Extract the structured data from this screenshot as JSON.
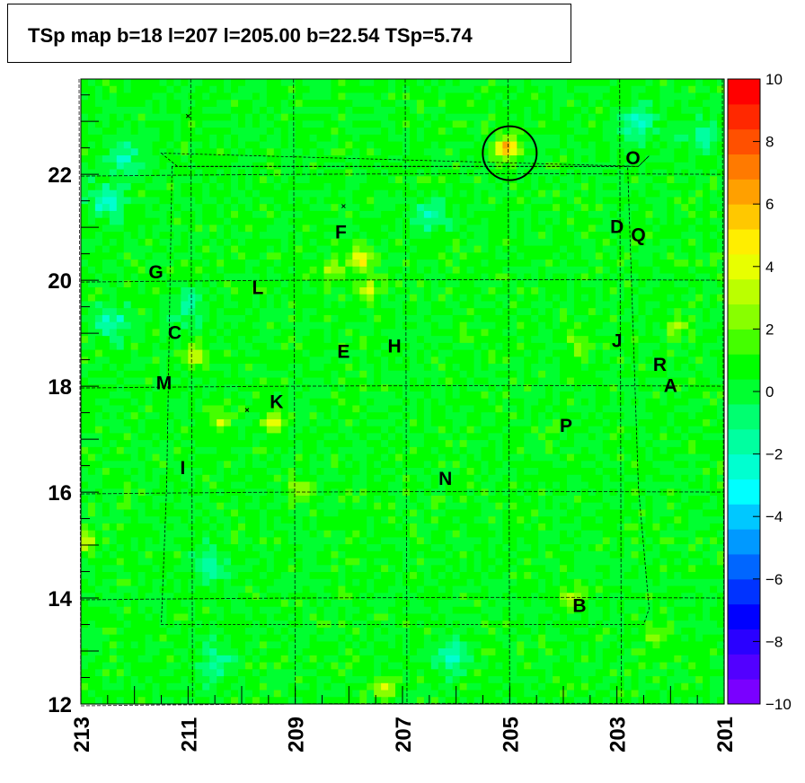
{
  "title": "TSp map b=18 l=207 l=205.00 b=22.54 TSp=5.74",
  "chart_data": {
    "type": "heatmap",
    "title": "TSp map b=18 l=207 l=205.00 b=22.54 TSp=5.74",
    "xlabel": "",
    "ylabel": "",
    "xlim": [
      213,
      201
    ],
    "ylim": [
      12,
      23.8
    ],
    "x_reversed": true,
    "x_ticks": [
      "213",
      "211",
      "209",
      "207",
      "205",
      "203",
      "201"
    ],
    "y_ticks": [
      "12",
      "14",
      "16",
      "18",
      "20",
      "22"
    ],
    "colorbar": {
      "min": -10,
      "max": 10,
      "ticks": [
        "10",
        "8",
        "6",
        "4",
        "2",
        "0",
        "−2",
        "−4",
        "−6",
        "−8",
        "−10"
      ],
      "colors": [
        "#7a00ff",
        "#5200ff",
        "#2a00ff",
        "#0000ff",
        "#0033ff",
        "#0066ff",
        "#0099ff",
        "#00c8ff",
        "#00ffff",
        "#00ffd0",
        "#00ffa0",
        "#00ff70",
        "#00ff30",
        "#00ff00",
        "#44ff00",
        "#88ff00",
        "#bbff00",
        "#e8ff00",
        "#ffee00",
        "#ffc800",
        "#ffa000",
        "#ff7a00",
        "#ff5000",
        "#ff2800",
        "#ff0000"
      ]
    },
    "field_background_value": 0.5,
    "highlight_circle": {
      "l": 205.0,
      "b": 22.4
    },
    "x_markers": [
      {
        "l": 211.0,
        "b": 23.1
      },
      {
        "l": 208.1,
        "b": 21.4
      },
      {
        "l": 209.9,
        "b": 17.55
      }
    ],
    "hotspots": [
      {
        "l": 205.05,
        "b": 22.5,
        "value": 6.0
      },
      {
        "l": 207.8,
        "b": 20.4,
        "value": 4.0
      },
      {
        "l": 207.6,
        "b": 19.8,
        "value": 3.0
      },
      {
        "l": 209.4,
        "b": 17.35,
        "value": 3.0
      },
      {
        "l": 210.4,
        "b": 17.3,
        "value": 2.5
      },
      {
        "l": 210.85,
        "b": 18.6,
        "value": 3.0
      },
      {
        "l": 212.9,
        "b": 15.1,
        "value": 3.0
      },
      {
        "l": 207.3,
        "b": 12.3,
        "value": 3.0
      },
      {
        "l": 208.9,
        "b": 16.0,
        "value": 2.5
      },
      {
        "l": 203.7,
        "b": 18.8,
        "value": 2.0
      },
      {
        "l": 202.3,
        "b": 13.3,
        "value": 2.0
      },
      {
        "l": 203.8,
        "b": 14.0,
        "value": 2.5
      },
      {
        "l": 201.9,
        "b": 19.1,
        "value": 2.0
      },
      {
        "l": 208.3,
        "b": 20.2,
        "value": 2.0
      }
    ],
    "coldspots": [
      {
        "l": 202.6,
        "b": 23.0,
        "value": -3.0
      },
      {
        "l": 212.5,
        "b": 21.5,
        "value": -3.0
      },
      {
        "l": 212.2,
        "b": 22.3,
        "value": -2.5
      },
      {
        "l": 212.4,
        "b": 19.2,
        "value": -2.5
      },
      {
        "l": 211.0,
        "b": 19.5,
        "value": -2.0
      },
      {
        "l": 206.1,
        "b": 12.9,
        "value": -2.5
      },
      {
        "l": 210.5,
        "b": 12.8,
        "value": -2.0
      },
      {
        "l": 201.4,
        "b": 22.7,
        "value": -2.0
      },
      {
        "l": 206.5,
        "b": 21.2,
        "value": -2.0
      },
      {
        "l": 210.6,
        "b": 14.6,
        "value": -2.0
      }
    ],
    "labels": [
      {
        "text": "O",
        "l": 202.7,
        "b": 22.3
      },
      {
        "text": "D",
        "l": 203.0,
        "b": 21.0
      },
      {
        "text": "Q",
        "l": 202.6,
        "b": 20.85
      },
      {
        "text": "F",
        "l": 208.15,
        "b": 20.9
      },
      {
        "text": "G",
        "l": 211.6,
        "b": 20.15
      },
      {
        "text": "L",
        "l": 209.7,
        "b": 19.85
      },
      {
        "text": "C",
        "l": 211.25,
        "b": 19.0
      },
      {
        "text": "E",
        "l": 208.1,
        "b": 18.65
      },
      {
        "text": "H",
        "l": 207.15,
        "b": 18.75
      },
      {
        "text": "J",
        "l": 203.0,
        "b": 18.85
      },
      {
        "text": "R",
        "l": 202.2,
        "b": 18.4
      },
      {
        "text": "A",
        "l": 202.0,
        "b": 18.0
      },
      {
        "text": "M",
        "l": 211.45,
        "b": 18.05
      },
      {
        "text": "K",
        "l": 209.35,
        "b": 17.7
      },
      {
        "text": "P",
        "l": 203.95,
        "b": 17.25
      },
      {
        "text": "I",
        "l": 211.1,
        "b": 16.45
      },
      {
        "text": "N",
        "l": 206.2,
        "b": 16.25
      },
      {
        "text": "B",
        "l": 203.7,
        "b": 13.85
      }
    ],
    "grid_lines": {
      "longitude": [
        213,
        211,
        209,
        207,
        205,
        203,
        201
      ],
      "latitude": [
        12,
        14,
        16,
        18,
        20,
        22
      ]
    }
  }
}
